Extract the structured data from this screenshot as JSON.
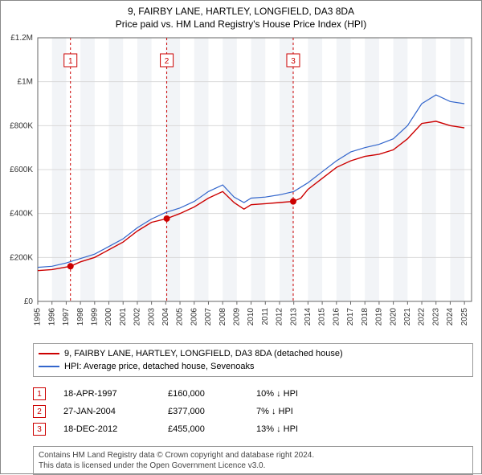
{
  "title_line1": "9, FAIRBY LANE, HARTLEY, LONGFIELD, DA3 8DA",
  "title_line2": "Price paid vs. HM Land Registry's House Price Index (HPI)",
  "chart": {
    "type": "line",
    "xlim": [
      1995,
      2025.5
    ],
    "ylim": [
      0,
      1200000
    ],
    "ytick_step": 200000,
    "ytick_labels": [
      "£0",
      "£200K",
      "£400K",
      "£600K",
      "£800K",
      "£1M",
      "£1.2M"
    ],
    "xticks": [
      1995,
      1996,
      1997,
      1998,
      1999,
      2000,
      2001,
      2002,
      2003,
      2004,
      2005,
      2006,
      2007,
      2008,
      2009,
      2010,
      2011,
      2012,
      2013,
      2014,
      2015,
      2016,
      2017,
      2018,
      2019,
      2020,
      2021,
      2022,
      2023,
      2024,
      2025
    ],
    "background_color": "#ffffff",
    "grid_color": "#d9d9d9",
    "shade_band_color": "#f2f4f7",
    "axis_color": "#666666",
    "label_font_size": 10,
    "series": [
      {
        "name": "price_paid",
        "label": "9, FAIRBY LANE, HARTLEY, LONGFIELD, DA3 8DA (detached house)",
        "color": "#cc0000",
        "line_width": 1.4,
        "data": [
          [
            1995,
            140000
          ],
          [
            1996,
            145000
          ],
          [
            1997.3,
            160000
          ],
          [
            1998,
            180000
          ],
          [
            1999,
            200000
          ],
          [
            2000,
            235000
          ],
          [
            2001,
            270000
          ],
          [
            2002,
            320000
          ],
          [
            2003,
            360000
          ],
          [
            2004.07,
            377000
          ],
          [
            2005,
            400000
          ],
          [
            2006,
            430000
          ],
          [
            2007,
            470000
          ],
          [
            2008,
            500000
          ],
          [
            2008.8,
            450000
          ],
          [
            2009.5,
            420000
          ],
          [
            2010,
            440000
          ],
          [
            2011,
            445000
          ],
          [
            2012,
            450000
          ],
          [
            2012.96,
            455000
          ],
          [
            2013.5,
            470000
          ],
          [
            2014,
            510000
          ],
          [
            2015,
            560000
          ],
          [
            2016,
            610000
          ],
          [
            2017,
            640000
          ],
          [
            2018,
            660000
          ],
          [
            2019,
            670000
          ],
          [
            2020,
            690000
          ],
          [
            2021,
            740000
          ],
          [
            2022,
            810000
          ],
          [
            2023,
            820000
          ],
          [
            2024,
            800000
          ],
          [
            2025,
            790000
          ]
        ]
      },
      {
        "name": "hpi",
        "label": "HPI: Average price, detached house, Sevenoaks",
        "color": "#3366cc",
        "line_width": 1.2,
        "data": [
          [
            1995,
            155000
          ],
          [
            1996,
            160000
          ],
          [
            1997,
            175000
          ],
          [
            1998,
            195000
          ],
          [
            1999,
            215000
          ],
          [
            2000,
            250000
          ],
          [
            2001,
            285000
          ],
          [
            2002,
            335000
          ],
          [
            2003,
            375000
          ],
          [
            2004,
            405000
          ],
          [
            2005,
            425000
          ],
          [
            2006,
            455000
          ],
          [
            2007,
            500000
          ],
          [
            2008,
            530000
          ],
          [
            2008.8,
            475000
          ],
          [
            2009.5,
            450000
          ],
          [
            2010,
            470000
          ],
          [
            2011,
            475000
          ],
          [
            2012,
            485000
          ],
          [
            2013,
            500000
          ],
          [
            2014,
            540000
          ],
          [
            2015,
            590000
          ],
          [
            2016,
            640000
          ],
          [
            2017,
            680000
          ],
          [
            2018,
            700000
          ],
          [
            2019,
            715000
          ],
          [
            2020,
            740000
          ],
          [
            2021,
            800000
          ],
          [
            2022,
            900000
          ],
          [
            2023,
            940000
          ],
          [
            2024,
            910000
          ],
          [
            2025,
            900000
          ]
        ]
      }
    ],
    "event_markers": [
      {
        "id": "1",
        "x": 1997.3,
        "y": 160000,
        "color": "#cc0000"
      },
      {
        "id": "2",
        "x": 2004.07,
        "y": 377000,
        "color": "#cc0000"
      },
      {
        "id": "3",
        "x": 2012.96,
        "y": 455000,
        "color": "#cc0000"
      }
    ]
  },
  "legend": {
    "items": [
      {
        "color": "#cc0000",
        "label": "9, FAIRBY LANE, HARTLEY, LONGFIELD, DA3 8DA (detached house)"
      },
      {
        "color": "#3366cc",
        "label": "HPI: Average price, detached house, Sevenoaks"
      }
    ]
  },
  "marker_rows": [
    {
      "id": "1",
      "color": "#cc0000",
      "date": "18-APR-1997",
      "price": "£160,000",
      "delta": "10% ↓ HPI"
    },
    {
      "id": "2",
      "color": "#cc0000",
      "date": "27-JAN-2004",
      "price": "£377,000",
      "delta": "7% ↓ HPI"
    },
    {
      "id": "3",
      "color": "#cc0000",
      "date": "18-DEC-2012",
      "price": "£455,000",
      "delta": "13% ↓ HPI"
    }
  ],
  "footer": {
    "line1": "Contains HM Land Registry data © Crown copyright and database right 2024.",
    "line2": "This data is licensed under the Open Government Licence v3.0."
  }
}
